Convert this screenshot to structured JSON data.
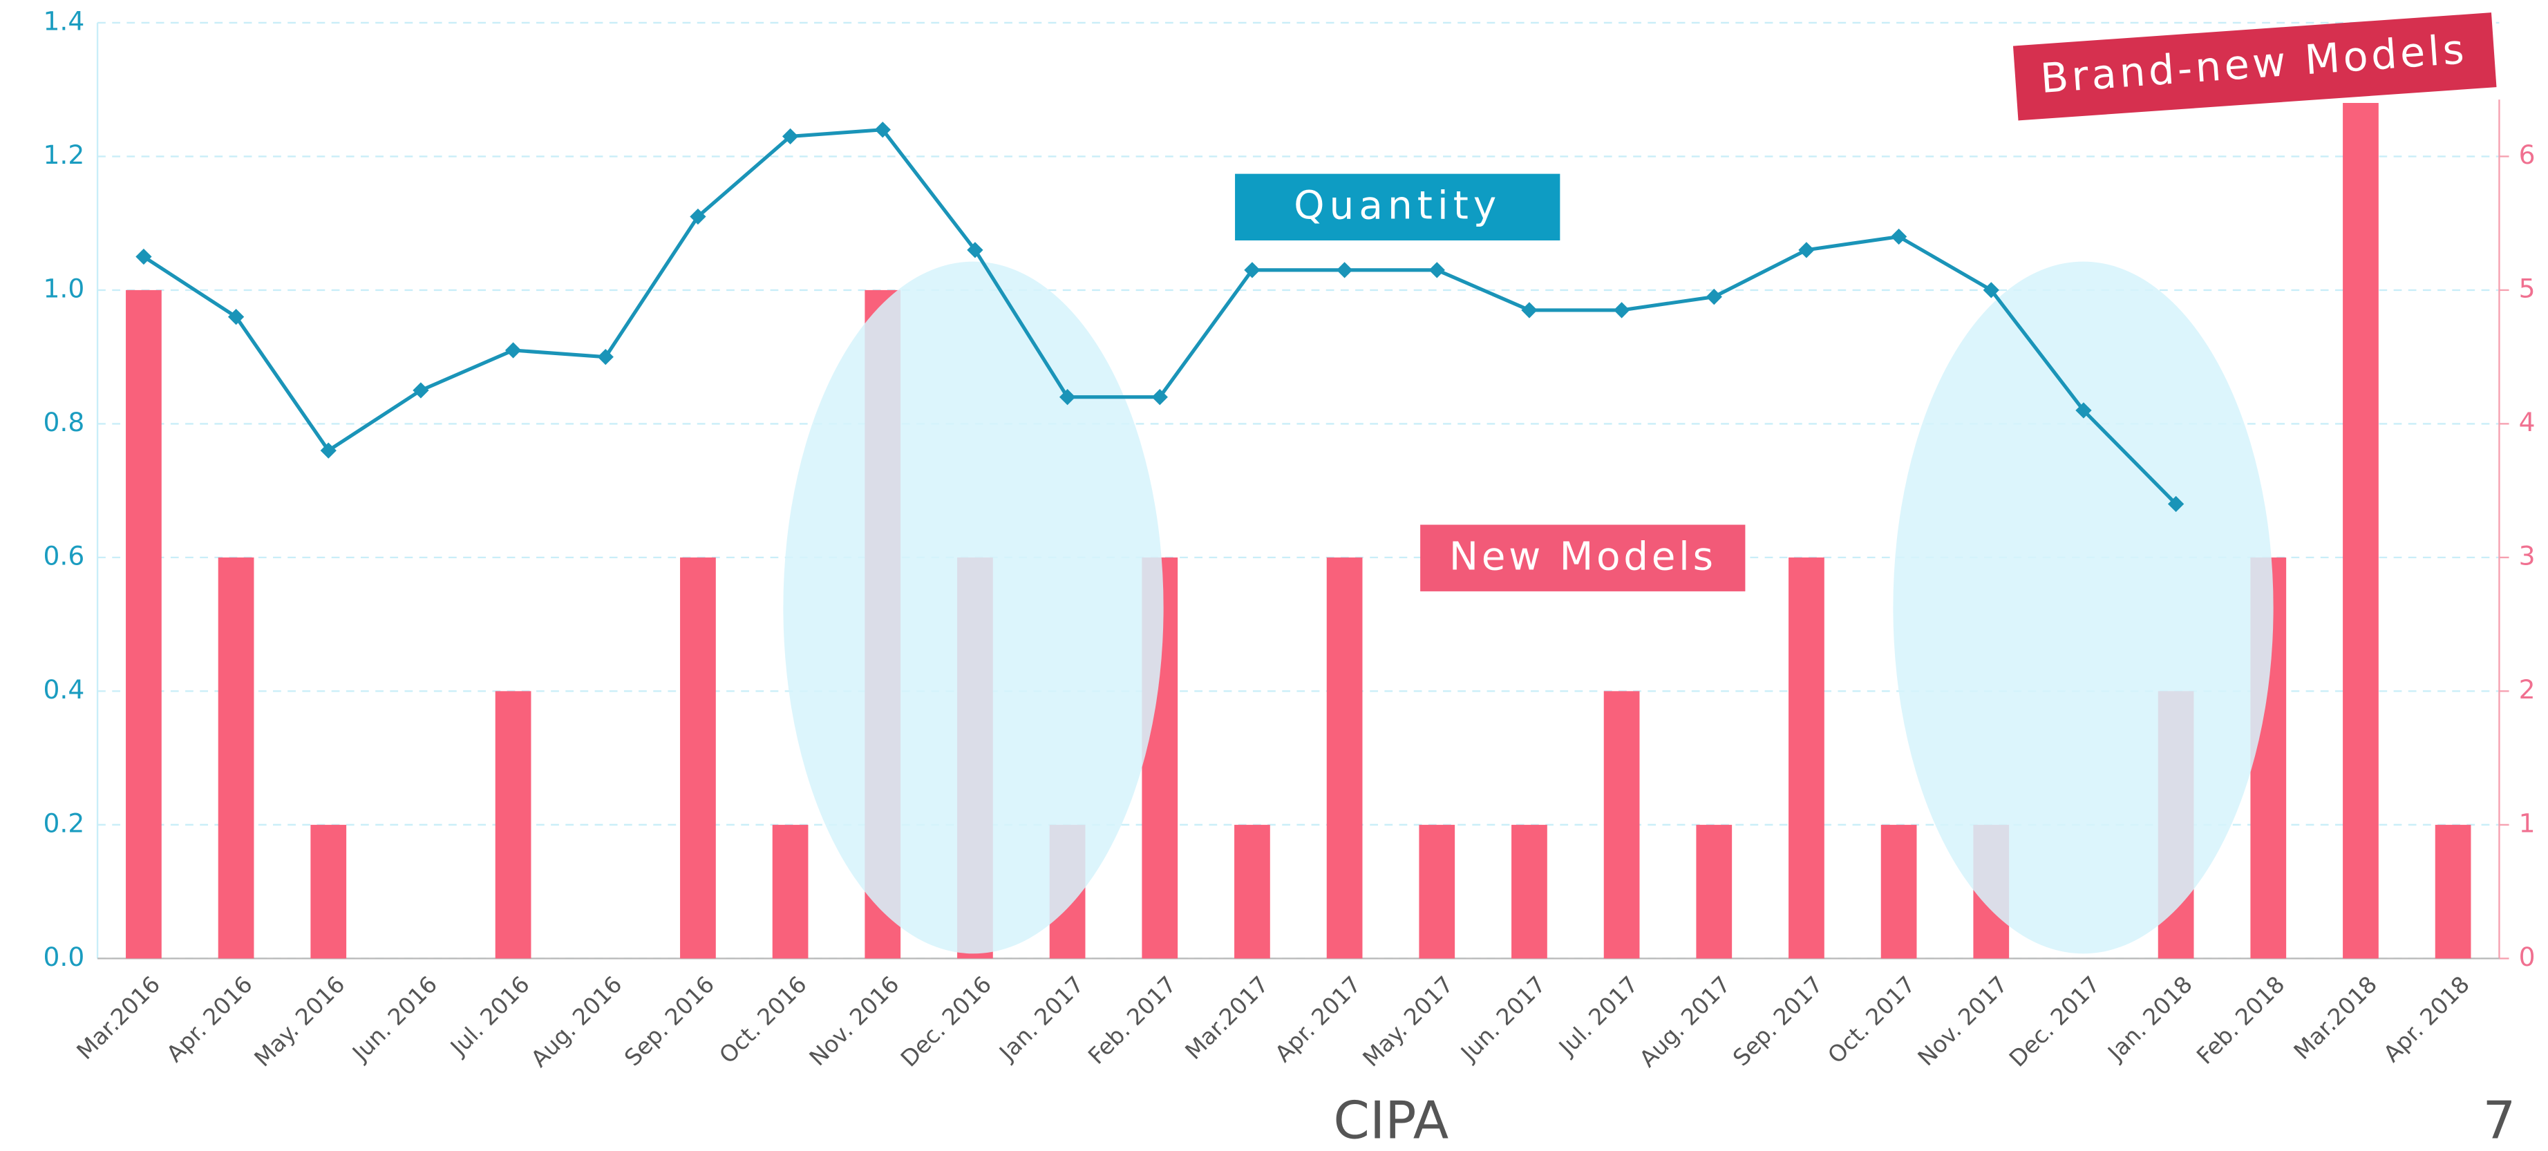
{
  "chart_data": {
    "type": "bar-line",
    "categories": [
      "Mar.2016",
      "Apr. 2016",
      "May. 2016",
      "Jun. 2016",
      "Jul. 2016",
      "Aug. 2016",
      "Sep. 2016",
      "Oct. 2016",
      "Nov. 2016",
      "Dec. 2016",
      "Jan. 2017",
      "Feb. 2017",
      "Mar.2017",
      "Apr. 2017",
      "May. 2017",
      "Jun. 2017",
      "Jul. 2017",
      "Aug. 2017",
      "Sep. 2017",
      "Oct. 2017",
      "Nov. 2017",
      "Dec. 2017",
      "Jan. 2018",
      "Feb. 2018",
      "Mar.2018",
      "Apr. 2018"
    ],
    "series": [
      {
        "name": "Quantity",
        "type": "line",
        "color": "#1a94b8",
        "values": [
          1.05,
          0.96,
          0.76,
          0.85,
          0.91,
          0.9,
          1.11,
          1.23,
          1.24,
          1.06,
          0.84,
          0.84,
          1.03,
          1.03,
          1.03,
          0.97,
          0.97,
          0.99,
          1.06,
          1.08,
          1.0,
          0.82,
          0.68,
          null,
          null,
          null
        ]
      },
      {
        "name": "New Models",
        "type": "bar",
        "axis": "y2",
        "color": "#f9617b",
        "values": [
          5,
          3,
          1,
          0,
          2,
          0,
          3,
          1,
          5,
          3,
          1,
          3,
          1,
          3,
          1,
          1,
          2,
          1,
          3,
          1,
          1,
          0,
          2,
          3,
          6.4,
          1
        ]
      }
    ],
    "ylim": [
      0,
      1.4
    ],
    "yticks": [
      {
        "value": 0,
        "label": "0.0"
      },
      {
        "value": 0.2,
        "label": "0.2"
      },
      {
        "value": 0.4,
        "label": "0.4"
      },
      {
        "value": 0.6,
        "label": "0.6"
      },
      {
        "value": 0.8,
        "label": "0.8"
      },
      {
        "value": 1,
        "label": "1.0"
      },
      {
        "value": 1.2,
        "label": "1.2"
      },
      {
        "value": 1.4,
        "label": "1.4"
      }
    ],
    "y2lim": [
      0,
      7
    ],
    "y2ticks": [
      0,
      1,
      2,
      3,
      4,
      5,
      6
    ],
    "grid": true,
    "annotations": [
      "Brand-new Models"
    ],
    "footer": "CIPA",
    "page_number": "7"
  }
}
